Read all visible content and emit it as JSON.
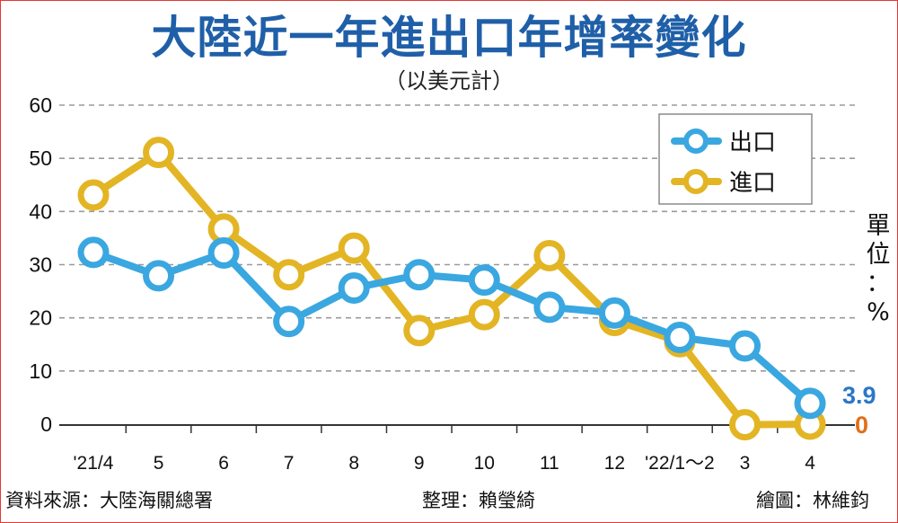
{
  "chart_data": {
    "type": "line",
    "title": "大陸近一年進出口年增率變化",
    "subtitle": "（以美元計）",
    "categories": [
      "'21/4",
      "5",
      "6",
      "7",
      "8",
      "9",
      "10",
      "11",
      "12",
      "'22/1～2",
      "3",
      "4"
    ],
    "series": [
      {
        "name": "出口",
        "color": "#3aa7e0",
        "values": [
          32.3,
          27.9,
          32.2,
          19.3,
          25.6,
          28.1,
          27.1,
          22.0,
          20.9,
          16.3,
          14.7,
          3.9
        ]
      },
      {
        "name": "進口",
        "color": "#e3b524",
        "values": [
          43.1,
          51.1,
          36.7,
          28.1,
          33.1,
          17.6,
          20.6,
          31.7,
          19.5,
          15.5,
          -0.1,
          0
        ]
      }
    ],
    "y_ticks": [
      "0",
      "10",
      "20",
      "30",
      "40",
      "50",
      "60"
    ],
    "ylim": [
      0,
      60
    ],
    "grid": true,
    "legend_position": "top-right",
    "end_labels": {
      "export": {
        "text": "3.9",
        "color": "#2a77c6"
      },
      "import": {
        "text": "0",
        "color": "#e0701a"
      }
    },
    "unit_chars": [
      "單",
      "位",
      "：",
      "%"
    ]
  },
  "footer": {
    "source": "資料來源：大陸海關總署",
    "editor": "整理：賴瑩綺",
    "artist": "繪圖：林維鈞"
  }
}
